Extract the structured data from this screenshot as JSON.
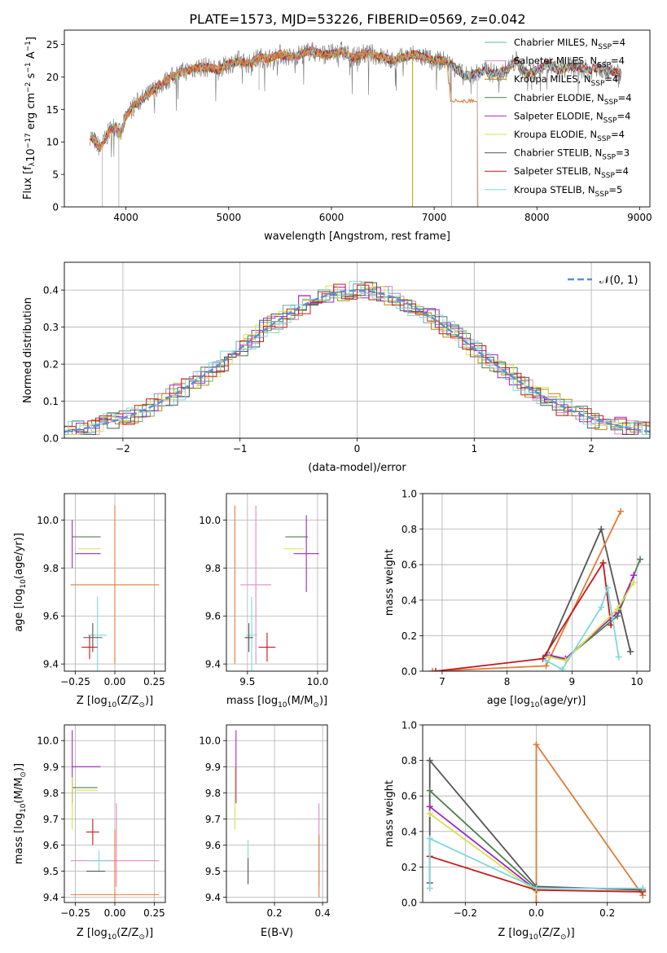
{
  "figure": {
    "title": "PLATE=1573, MJD=53226, FIBERID=0569, z=0.042"
  },
  "colors": {
    "Chabrier MILES": "#6aa8a8",
    "Salpeter MILES": "#e18ac2",
    "Kroupa MILES": "#b8860b",
    "Chabrier ELODIE": "#4d7f4d",
    "Salpeter ELODIE": "#a126c4",
    "Kroupa ELODIE": "#d8e04a",
    "Chabrier STELIB": "#555555",
    "Salpeter STELIB": "#c41a1a",
    "Kroupa STELIB": "#7fd8dc",
    "data": "#777777",
    "orange": "#e07b39",
    "gaussian": "#5b8fd9"
  },
  "chart_data": [
    {
      "id": "spectrum",
      "type": "line",
      "title": "PLATE=1573, MJD=53226, FIBERID=0569, z=0.042",
      "xlabel": "wavelength [Angstrom, rest frame]",
      "ylabel": "Flux [f",
      "ylabel_parts": [
        "Flux [f",
        "λ",
        "10",
        "−17",
        " erg cm",
        "−2",
        " s",
        "−1",
        " A",
        "−1",
        "]"
      ],
      "xlim": [
        3400,
        9100
      ],
      "ylim": [
        0,
        27.2
      ],
      "xticks": [
        4000,
        5000,
        6000,
        7000,
        8000,
        9000
      ],
      "yticks": [
        0,
        5,
        10,
        15,
        20,
        25
      ],
      "legend_loc": "upper right",
      "legend": [
        {
          "label": "Chabrier MILES, N",
          "sub": "SSP",
          "suffix": "=4",
          "key": "Chabrier MILES"
        },
        {
          "label": "Salpeter MILES, N",
          "sub": "SSP",
          "suffix": "=4",
          "key": "Salpeter MILES"
        },
        {
          "label": "Kroupa MILES, N",
          "sub": "SSP",
          "suffix": "=4",
          "key": "Kroupa MILES"
        },
        {
          "label": "Chabrier ELODIE, N",
          "sub": "SSP",
          "suffix": "=4",
          "key": "Chabrier ELODIE"
        },
        {
          "label": "Salpeter ELODIE, N",
          "sub": "SSP",
          "suffix": "=4",
          "key": "Salpeter ELODIE"
        },
        {
          "label": "Kroupa ELODIE, N",
          "sub": "SSP",
          "suffix": "=4",
          "key": "Kroupa ELODIE"
        },
        {
          "label": "Chabrier STELIB, N",
          "sub": "SSP",
          "suffix": "=3",
          "key": "Chabrier STELIB"
        },
        {
          "label": "Salpeter STELIB, N",
          "sub": "SSP",
          "suffix": "=4",
          "key": "Salpeter STELIB"
        },
        {
          "label": "Kroupa STELIB, N",
          "sub": "SSP",
          "suffix": "=5",
          "key": "Kroupa STELIB"
        }
      ],
      "continuum": [
        [
          3650,
          11
        ],
        [
          3700,
          10
        ],
        [
          3750,
          9
        ],
        [
          3800,
          10.5
        ],
        [
          3850,
          12
        ],
        [
          3900,
          12.5
        ],
        [
          3950,
          11
        ],
        [
          4000,
          14
        ],
        [
          4050,
          15
        ],
        [
          4100,
          16
        ],
        [
          4200,
          17
        ],
        [
          4300,
          18.5
        ],
        [
          4400,
          19.5
        ],
        [
          4500,
          20.5
        ],
        [
          4600,
          21
        ],
        [
          4700,
          21.5
        ],
        [
          4800,
          21.5
        ],
        [
          4900,
          21
        ],
        [
          5000,
          22
        ],
        [
          5100,
          22.5
        ],
        [
          5200,
          22
        ],
        [
          5300,
          23
        ],
        [
          5400,
          22.8
        ],
        [
          5500,
          23.5
        ],
        [
          5600,
          23
        ],
        [
          5700,
          23.5
        ],
        [
          5800,
          24
        ],
        [
          5900,
          23.5
        ],
        [
          6000,
          23.5
        ],
        [
          6100,
          24
        ],
        [
          6200,
          23
        ],
        [
          6300,
          23.5
        ],
        [
          6400,
          23.5
        ],
        [
          6500,
          23
        ],
        [
          6600,
          22.5
        ],
        [
          6700,
          23
        ],
        [
          6800,
          23.5
        ],
        [
          6900,
          23
        ],
        [
          7000,
          22.5
        ],
        [
          7100,
          22.5
        ],
        [
          7200,
          21.5
        ],
        [
          7300,
          20
        ],
        [
          7400,
          20.5
        ],
        [
          7500,
          21
        ],
        [
          7600,
          20.5
        ],
        [
          7700,
          21
        ],
        [
          7800,
          22.5
        ],
        [
          7900,
          20.5
        ],
        [
          8000,
          21
        ],
        [
          8100,
          22
        ],
        [
          8200,
          21
        ],
        [
          8300,
          21.5
        ],
        [
          8400,
          21.5
        ],
        [
          8500,
          21
        ],
        [
          8600,
          21.5
        ],
        [
          8700,
          21
        ],
        [
          8800,
          20.5
        ]
      ],
      "spikes_down": [
        [
          3770,
          0
        ],
        [
          3930,
          0
        ],
        [
          5295,
          18
        ],
        [
          6790,
          0
        ],
        [
          7170,
          0
        ],
        [
          7420,
          0
        ]
      ]
    },
    {
      "id": "residuals",
      "type": "bar",
      "xlabel": "(data-model)/error",
      "ylabel": "Normed distribution",
      "xlim": [
        -2.5,
        2.5
      ],
      "ylim": [
        0,
        0.475
      ],
      "xticks": [
        -2,
        -1,
        0,
        1,
        2
      ],
      "yticks": [
        0.0,
        0.1,
        0.2,
        0.3,
        0.4
      ],
      "legend_loc": "upper right",
      "legend": [
        {
          "label": "𝒩(0, 1)",
          "style": "dashed"
        }
      ],
      "bin_width": 0.1
    },
    {
      "id": "age_vs_Z",
      "type": "scatter",
      "xlabel": "Z [log",
      "xlabel_parts": [
        "Z [log",
        "10",
        "(Z/Z",
        "⊙",
        ")]"
      ],
      "ylabel_parts": [
        "age  [log",
        "10",
        "(age/yr)]"
      ],
      "xlim": [
        -0.32,
        0.32
      ],
      "ylim": [
        9.37,
        10.11
      ],
      "xticks": [
        -0.25,
        0.0,
        0.25
      ],
      "yticks": [
        9.4,
        9.6,
        9.8,
        10.0
      ],
      "points": [
        {
          "x": -0.18,
          "y": 9.93,
          "xerr": 0.09,
          "yerr": 0.0,
          "key": "Chabrier ELODIE"
        },
        {
          "x": -0.16,
          "y": 9.88,
          "xerr": 0.07,
          "yerr": 0.0,
          "key": "Kroupa ELODIE"
        },
        {
          "x": -0.17,
          "y": 9.86,
          "xerr": 0.08,
          "yerr": 0.0,
          "key": "Salpeter ELODIE"
        },
        {
          "x": -0.27,
          "y": 9.9,
          "xerr": 0.0,
          "yerr": 0.1,
          "key": "Salpeter ELODIE"
        },
        {
          "x": 0.0,
          "y": 9.73,
          "xerr": 0.28,
          "yerr": 0.33,
          "key": "orange"
        },
        {
          "x": -0.11,
          "y": 9.52,
          "xerr": 0.06,
          "yerr": 0.16,
          "key": "Kroupa STELIB"
        },
        {
          "x": -0.14,
          "y": 9.51,
          "xerr": 0.06,
          "yerr": 0.06,
          "key": "Chabrier STELIB"
        },
        {
          "x": -0.16,
          "y": 9.47,
          "xerr": 0.05,
          "yerr": 0.05,
          "key": "Salpeter STELIB"
        }
      ]
    },
    {
      "id": "age_vs_mass",
      "type": "scatter",
      "xlabel_parts": [
        "mass [log",
        "10",
        "(M/M",
        "⊙",
        ")]"
      ],
      "xlim": [
        9.35,
        10.07
      ],
      "ylim": [
        9.37,
        10.11
      ],
      "xticks": [
        9.5,
        10.0
      ],
      "yticks": [
        9.4,
        9.6,
        9.8,
        10.0
      ],
      "points": [
        {
          "x": 9.85,
          "y": 9.93,
          "xerr": 0.08,
          "yerr": 0.0,
          "key": "Chabrier ELODIE"
        },
        {
          "x": 9.83,
          "y": 9.88,
          "xerr": 0.07,
          "yerr": 0.0,
          "key": "Kroupa ELODIE"
        },
        {
          "x": 9.92,
          "y": 9.86,
          "xerr": 0.09,
          "yerr": 0.16,
          "key": "Salpeter ELODIE"
        },
        {
          "x": 9.41,
          "y": 9.73,
          "xerr": 0.0,
          "yerr": 0.33,
          "key": "orange"
        },
        {
          "x": 9.56,
          "y": 9.73,
          "xerr": 0.11,
          "yerr": 0.33,
          "key": "Salpeter MILES"
        },
        {
          "x": 9.53,
          "y": 9.52,
          "xerr": 0.04,
          "yerr": 0.16,
          "key": "Kroupa STELIB"
        },
        {
          "x": 9.51,
          "y": 9.51,
          "xerr": 0.03,
          "yerr": 0.06,
          "key": "Chabrier STELIB"
        },
        {
          "x": 9.64,
          "y": 9.47,
          "xerr": 0.06,
          "yerr": 0.06,
          "key": "Salpeter STELIB"
        }
      ]
    },
    {
      "id": "mass_weight_vs_age",
      "type": "line",
      "xlabel_parts": [
        "age  [log",
        "10",
        "(age/yr)]"
      ],
      "ylabel": "mass weight",
      "xlim": [
        6.7,
        10.2
      ],
      "ylim": [
        0,
        1
      ],
      "xticks": [
        7,
        8,
        9,
        10
      ],
      "yticks": [
        0.0,
        0.2,
        0.4,
        0.6,
        0.8,
        1.0
      ],
      "series": [
        {
          "key": "Chabrier STELIB",
          "x": [
            8.6,
            9.45,
            9.9
          ],
          "y": [
            0.09,
            0.8,
            0.11
          ]
        },
        {
          "key": "orange",
          "x": [
            6.85,
            8.6,
            9.75
          ],
          "y": [
            0.0,
            0.03,
            0.9
          ]
        },
        {
          "key": "Salpeter STELIB",
          "x": [
            6.9,
            8.55,
            9.48,
            9.6
          ],
          "y": [
            0.0,
            0.07,
            0.61,
            0.26
          ]
        },
        {
          "key": "Chabrier ELODIE",
          "x": [
            8.65,
            8.9,
            9.7,
            10.05
          ],
          "y": [
            0.08,
            0.07,
            0.31,
            0.63
          ]
        },
        {
          "key": "Salpeter ELODIE",
          "x": [
            8.65,
            8.9,
            9.7,
            9.95
          ],
          "y": [
            0.09,
            0.07,
            0.33,
            0.54
          ]
        },
        {
          "key": "Kroupa ELODIE",
          "x": [
            8.65,
            8.9,
            9.7,
            9.95
          ],
          "y": [
            0.08,
            0.06,
            0.35,
            0.5
          ]
        },
        {
          "key": "Kroupa STELIB",
          "x": [
            8.6,
            8.85,
            9.45,
            9.55,
            9.72
          ],
          "y": [
            0.06,
            0.01,
            0.36,
            0.47,
            0.08
          ]
        }
      ]
    },
    {
      "id": "mass_vs_Z",
      "type": "scatter",
      "xlabel_parts": [
        "Z [log",
        "10",
        "(Z/Z",
        "⊙",
        ")]"
      ],
      "ylabel_parts": [
        "mass [log",
        "10",
        "(M/M",
        "⊙",
        ")]"
      ],
      "xlim": [
        -0.32,
        0.32
      ],
      "ylim": [
        9.38,
        10.06
      ],
      "xticks": [
        -0.25,
        0.0,
        0.25
      ],
      "yticks": [
        9.4,
        9.5,
        9.6,
        9.7,
        9.8,
        9.9,
        10.0
      ],
      "points": [
        {
          "x": -0.18,
          "y": 9.9,
          "xerr": 0.09,
          "yerr": 0.0,
          "key": "Salpeter ELODIE"
        },
        {
          "x": -0.27,
          "y": 9.9,
          "xerr": 0.0,
          "yerr": 0.14,
          "key": "Salpeter ELODIE"
        },
        {
          "x": -0.19,
          "y": 9.82,
          "xerr": 0.08,
          "yerr": 0.0,
          "key": "Chabrier ELODIE"
        },
        {
          "x": -0.18,
          "y": 9.81,
          "xerr": 0.07,
          "yerr": 0.0,
          "key": "Kroupa ELODIE"
        },
        {
          "x": -0.27,
          "y": 9.76,
          "xerr": 0.0,
          "yerr": 0.1,
          "key": "Kroupa ELODIE"
        },
        {
          "x": -0.14,
          "y": 9.65,
          "xerr": 0.04,
          "yerr": 0.05,
          "key": "Salpeter STELIB"
        },
        {
          "x": 0.0,
          "y": 9.54,
          "xerr": 0.28,
          "yerr": 0.0,
          "key": "Salpeter MILES"
        },
        {
          "x": 0.01,
          "y": 9.6,
          "xerr": 0.0,
          "yerr": 0.16,
          "key": "Salpeter MILES"
        },
        {
          "x": -0.1,
          "y": 9.54,
          "xerr": 0.07,
          "yerr": 0.04,
          "key": "Kroupa STELIB"
        },
        {
          "x": -0.12,
          "y": 9.5,
          "xerr": 0.06,
          "yerr": 0.0,
          "key": "Chabrier STELIB"
        },
        {
          "x": 0.0,
          "y": 9.41,
          "xerr": 0.28,
          "yerr": 0.25,
          "key": "orange"
        }
      ]
    },
    {
      "id": "mass_vs_EBV",
      "type": "scatter",
      "xlabel": "E(B-V)",
      "xlim": [
        0.0,
        0.42
      ],
      "ylim": [
        9.38,
        10.06
      ],
      "xticks": [
        0.2,
        0.4
      ],
      "yticks": [
        9.4,
        9.5,
        9.6,
        9.7,
        9.8,
        9.9,
        10.0
      ],
      "points": [
        {
          "x": 0.04,
          "y": 9.9,
          "xerr": 0.0,
          "yerr": 0.14,
          "key": "Salpeter ELODIE"
        },
        {
          "x": 0.035,
          "y": 9.78,
          "xerr": 0.0,
          "yerr": 0.12,
          "key": "Kroupa ELODIE"
        },
        {
          "x": 0.09,
          "y": 9.54,
          "xerr": 0.0,
          "yerr": 0.08,
          "key": "Kroupa STELIB"
        },
        {
          "x": 0.09,
          "y": 9.5,
          "xerr": 0.0,
          "yerr": 0.05,
          "key": "Chabrier STELIB"
        },
        {
          "x": 0.385,
          "y": 9.6,
          "xerr": 0.0,
          "yerr": 0.16,
          "key": "Salpeter MILES"
        },
        {
          "x": 0.385,
          "y": 9.52,
          "xerr": 0.0,
          "yerr": 0.12,
          "key": "orange"
        }
      ]
    },
    {
      "id": "mass_weight_vs_Z",
      "type": "line",
      "xlabel_parts": [
        "Z [log",
        "10",
        "(Z/Z",
        "⊙",
        ")]"
      ],
      "ylabel": "mass weight",
      "xlim": [
        -0.32,
        0.32
      ],
      "ylim": [
        0,
        1
      ],
      "xticks": [
        -0.2,
        0.0,
        0.2
      ],
      "yticks": [
        0.0,
        0.2,
        0.4,
        0.6,
        0.8,
        1.0
      ],
      "series": [
        {
          "key": "orange",
          "x": [
            0.0,
            0.0,
            0.3
          ],
          "y": [
            0.0,
            0.89,
            0.04
          ]
        },
        {
          "key": "Chabrier STELIB",
          "x": [
            -0.3,
            -0.3,
            0.0,
            0.3
          ],
          "y": [
            0.11,
            0.8,
            0.09,
            0.07
          ]
        },
        {
          "key": "Chabrier ELODIE",
          "x": [
            -0.3,
            0.0
          ],
          "y": [
            0.63,
            0.08
          ]
        },
        {
          "key": "Salpeter ELODIE",
          "x": [
            -0.3,
            0.0
          ],
          "y": [
            0.54,
            0.07
          ]
        },
        {
          "key": "Kroupa ELODIE",
          "x": [
            -0.3,
            0.0
          ],
          "y": [
            0.5,
            0.06
          ]
        },
        {
          "key": "Salpeter STELIB",
          "x": [
            -0.3,
            0.0,
            0.3
          ],
          "y": [
            0.26,
            0.07,
            0.06
          ]
        },
        {
          "key": "Kroupa STELIB",
          "x": [
            -0.3,
            -0.3,
            0.0,
            0.3
          ],
          "y": [
            0.08,
            0.36,
            0.08,
            0.08
          ]
        }
      ]
    }
  ]
}
